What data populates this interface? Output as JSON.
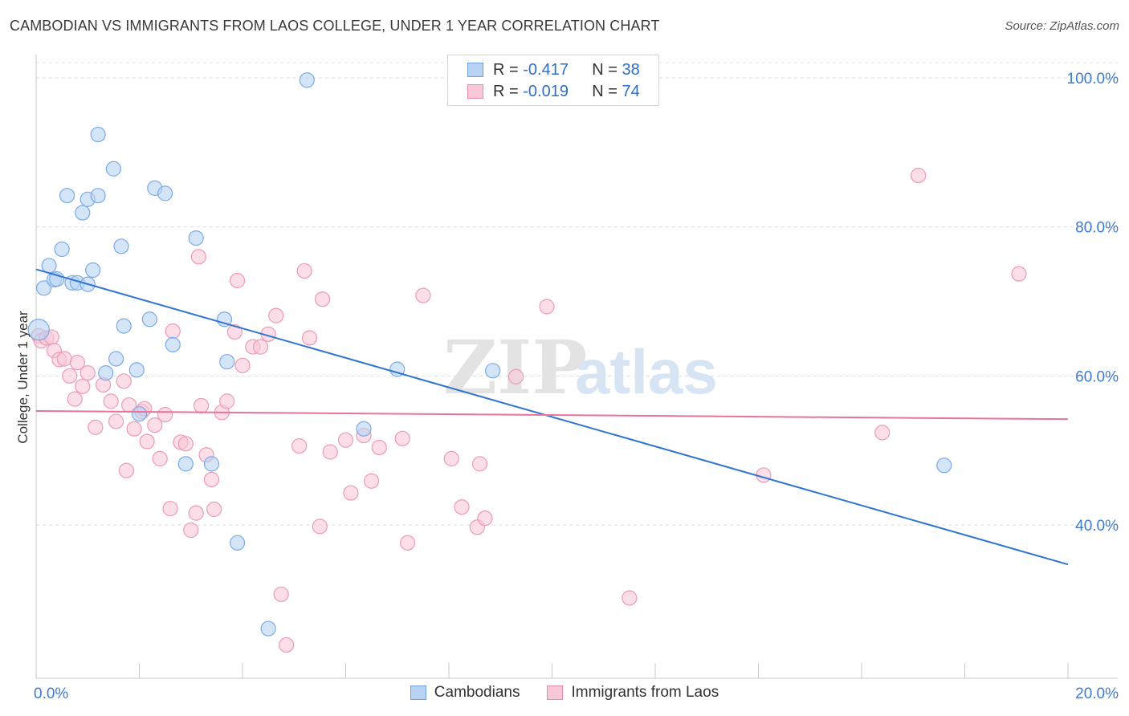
{
  "header": {
    "title": "CAMBODIAN VS IMMIGRANTS FROM LAOS COLLEGE, UNDER 1 YEAR CORRELATION CHART",
    "source": "Source: ZipAtlas.com"
  },
  "watermark": {
    "zip": "ZIP",
    "atlas": "atlas"
  },
  "legend": {
    "rows": [
      {
        "r_label": "R =",
        "r_value": "-0.417",
        "n_label": "N =",
        "n_value": "38",
        "color": "#a9c8f0",
        "border": "#6f9fe0"
      },
      {
        "r_label": "R =",
        "r_value": "-0.019",
        "n_label": "N =",
        "n_value": "74",
        "color": "#f7bfd0",
        "border": "#ea8aa8"
      }
    ]
  },
  "bottom_legend": {
    "cambodians": "Cambodians",
    "laos": "Immigrants from Laos"
  },
  "chart_data": {
    "type": "scatter",
    "title": "CAMBODIAN VS IMMIGRANTS FROM LAOS COLLEGE, UNDER 1 YEAR CORRELATION CHART",
    "xlabel": "",
    "ylabel": "College, Under 1 year",
    "xlim": [
      0,
      20
    ],
    "ylim": [
      22,
      102
    ],
    "x_tick_labels": [
      {
        "value": 0,
        "label": "0.0%"
      },
      {
        "value": 20,
        "label": "20.0%"
      }
    ],
    "y_tick_labels": [
      {
        "value": 100,
        "label": "100.0%"
      },
      {
        "value": 80,
        "label": "80.0%"
      },
      {
        "value": 60,
        "label": "60.0%"
      },
      {
        "value": 40,
        "label": "40.0%"
      }
    ],
    "x_minor_ticks": [
      0,
      2,
      4,
      6,
      8,
      10,
      12,
      14,
      16,
      18,
      20
    ],
    "gridlines": [
      100,
      80,
      60,
      40
    ],
    "series": [
      {
        "name": "Cambodians",
        "color": "#7aaae8",
        "fill": "#b8d3f3",
        "trend": {
          "x": [
            0,
            20
          ],
          "y": [
            74.3,
            34.7
          ],
          "color": "#2f74d0"
        },
        "points": [
          [
            0.05,
            66.2
          ],
          [
            0.15,
            71.8
          ],
          [
            0.25,
            74.8
          ],
          [
            0.35,
            72.9
          ],
          [
            0.4,
            73.0
          ],
          [
            0.5,
            77.0
          ],
          [
            0.6,
            84.2
          ],
          [
            0.7,
            72.5
          ],
          [
            0.8,
            72.5
          ],
          [
            0.9,
            81.9
          ],
          [
            1.0,
            83.7
          ],
          [
            1.1,
            74.2
          ],
          [
            1.2,
            84.2
          ],
          [
            1.2,
            92.4
          ],
          [
            1.35,
            60.4
          ],
          [
            1.5,
            87.8
          ],
          [
            1.55,
            62.3
          ],
          [
            1.65,
            77.4
          ],
          [
            1.7,
            66.7
          ],
          [
            1.95,
            60.8
          ],
          [
            2.0,
            54.9
          ],
          [
            2.2,
            67.6
          ],
          [
            2.3,
            85.2
          ],
          [
            2.5,
            84.5
          ],
          [
            2.65,
            64.2
          ],
          [
            2.9,
            48.2
          ],
          [
            3.1,
            78.5
          ],
          [
            3.4,
            48.2
          ],
          [
            3.65,
            67.6
          ],
          [
            3.7,
            61.9
          ],
          [
            3.9,
            37.6
          ],
          [
            4.5,
            26.1
          ],
          [
            5.25,
            99.7
          ],
          [
            6.35,
            52.9
          ],
          [
            7.0,
            60.9
          ],
          [
            8.85,
            60.7
          ],
          [
            17.6,
            48.0
          ],
          [
            1.0,
            72.3
          ]
        ]
      },
      {
        "name": "Immigrants from Laos",
        "color": "#ee9ab4",
        "fill": "#f9c8d7",
        "trend": {
          "x": [
            0,
            20
          ],
          "y": [
            55.3,
            54.2
          ],
          "color": "#e8739a"
        },
        "points": [
          [
            0.05,
            65.4
          ],
          [
            0.1,
            64.7
          ],
          [
            0.2,
            65.1
          ],
          [
            0.3,
            65.2
          ],
          [
            0.35,
            63.4
          ],
          [
            0.45,
            62.2
          ],
          [
            0.55,
            62.3
          ],
          [
            0.65,
            60.0
          ],
          [
            0.75,
            56.9
          ],
          [
            0.8,
            61.8
          ],
          [
            0.9,
            58.6
          ],
          [
            1.0,
            60.4
          ],
          [
            1.15,
            53.1
          ],
          [
            1.3,
            58.8
          ],
          [
            1.45,
            56.6
          ],
          [
            1.55,
            53.9
          ],
          [
            1.7,
            59.3
          ],
          [
            1.75,
            47.3
          ],
          [
            1.8,
            56.1
          ],
          [
            1.9,
            52.9
          ],
          [
            2.05,
            55.2
          ],
          [
            2.1,
            55.6
          ],
          [
            2.15,
            51.2
          ],
          [
            2.3,
            53.4
          ],
          [
            2.4,
            48.9
          ],
          [
            2.5,
            54.8
          ],
          [
            2.6,
            42.2
          ],
          [
            2.65,
            66.0
          ],
          [
            2.8,
            51.1
          ],
          [
            2.9,
            50.9
          ],
          [
            3.0,
            39.3
          ],
          [
            3.1,
            41.6
          ],
          [
            3.15,
            76.0
          ],
          [
            3.2,
            56.0
          ],
          [
            3.3,
            49.4
          ],
          [
            3.4,
            46.1
          ],
          [
            3.45,
            42.1
          ],
          [
            3.6,
            55.1
          ],
          [
            3.7,
            56.6
          ],
          [
            3.85,
            65.9
          ],
          [
            3.9,
            72.8
          ],
          [
            4.0,
            61.4
          ],
          [
            4.2,
            63.9
          ],
          [
            4.35,
            63.9
          ],
          [
            4.5,
            65.6
          ],
          [
            4.65,
            68.1
          ],
          [
            4.75,
            30.7
          ],
          [
            4.85,
            23.9
          ],
          [
            5.1,
            50.6
          ],
          [
            5.2,
            74.1
          ],
          [
            5.3,
            65.1
          ],
          [
            5.5,
            39.8
          ],
          [
            5.55,
            70.3
          ],
          [
            5.7,
            49.8
          ],
          [
            6.0,
            51.4
          ],
          [
            6.1,
            44.3
          ],
          [
            6.35,
            52.0
          ],
          [
            6.5,
            45.9
          ],
          [
            6.65,
            50.4
          ],
          [
            7.1,
            51.6
          ],
          [
            7.2,
            37.6
          ],
          [
            7.5,
            70.8
          ],
          [
            8.05,
            48.9
          ],
          [
            8.25,
            42.4
          ],
          [
            8.55,
            39.7
          ],
          [
            8.6,
            48.2
          ],
          [
            8.7,
            40.9
          ],
          [
            9.3,
            59.9
          ],
          [
            9.9,
            69.3
          ],
          [
            11.5,
            30.2
          ],
          [
            14.1,
            46.7
          ],
          [
            16.4,
            52.4
          ],
          [
            17.1,
            86.9
          ],
          [
            19.05,
            73.7
          ]
        ]
      }
    ]
  }
}
